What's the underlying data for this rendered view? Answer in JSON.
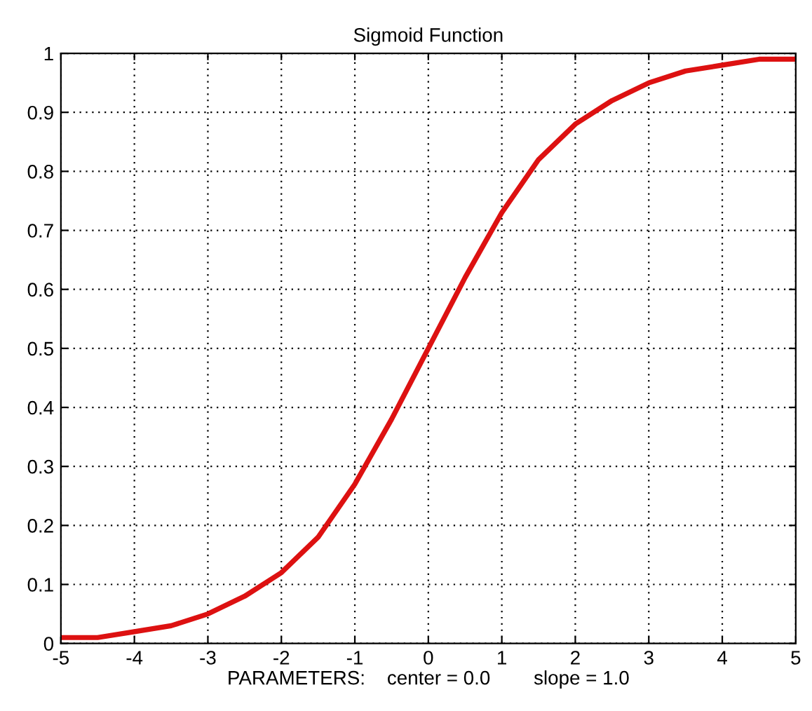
{
  "chart_data": {
    "type": "line",
    "title": "Sigmoid Function",
    "xlabel": "PARAMETERS:    center = 0.0        slope = 1.0",
    "x": [
      -5,
      -4.5,
      -4,
      -3.5,
      -3,
      -2.5,
      -2,
      -1.5,
      -1,
      -0.5,
      0,
      0.5,
      1,
      1.5,
      2,
      2.5,
      3,
      3.5,
      4,
      4.5,
      5
    ],
    "series": [
      {
        "color": "#dd1111",
        "values": [
          0.01,
          0.01,
          0.02,
          0.03,
          0.05,
          0.08,
          0.12,
          0.18,
          0.27,
          0.38,
          0.5,
          0.62,
          0.73,
          0.82,
          0.88,
          0.92,
          0.95,
          0.97,
          0.98,
          0.99,
          0.99
        ]
      }
    ],
    "xlim": [
      -5,
      5
    ],
    "xticks": [
      -5,
      -4,
      -3,
      -2,
      -1,
      0,
      1,
      2,
      3,
      4,
      5
    ],
    "ylim": [
      0,
      1
    ],
    "yticks": [
      0,
      0.1,
      0.2,
      0.3,
      0.4,
      0.5,
      0.6,
      0.7,
      0.8,
      0.9,
      1
    ],
    "grid": true,
    "marker": "none",
    "line_style": "solid"
  }
}
